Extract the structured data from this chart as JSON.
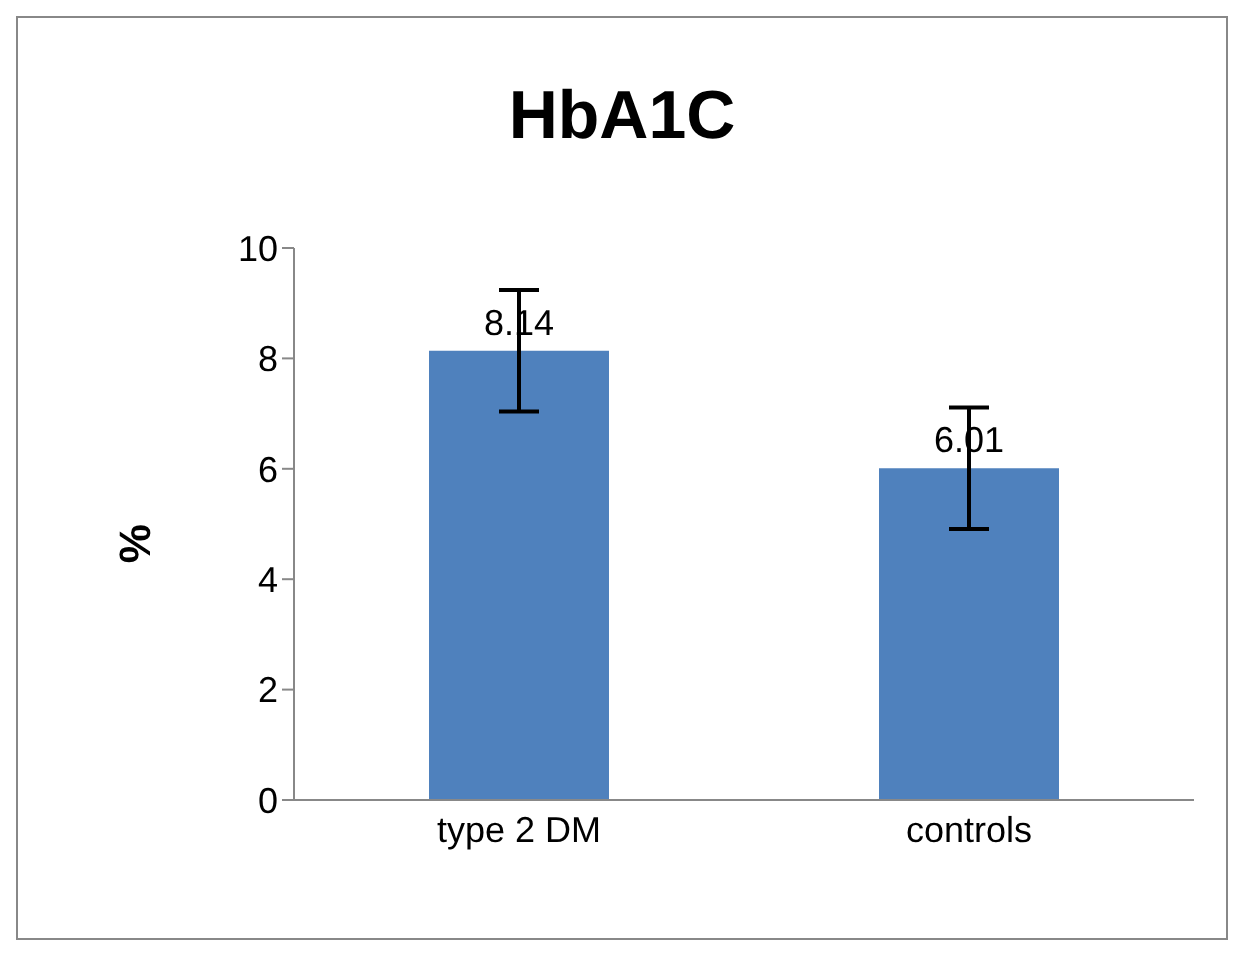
{
  "chart_data": {
    "type": "bar",
    "title": "HbA1C",
    "ylabel": "%",
    "categories": [
      "type 2 DM",
      "controls"
    ],
    "values": [
      8.14,
      6.01
    ],
    "errors": [
      1.1,
      1.1
    ],
    "color": "#4f81bd",
    "ylim": [
      0,
      10
    ],
    "yticks": [
      0,
      2,
      4,
      6,
      8,
      10
    ],
    "grid": false,
    "legend": false,
    "data_labels": true
  }
}
